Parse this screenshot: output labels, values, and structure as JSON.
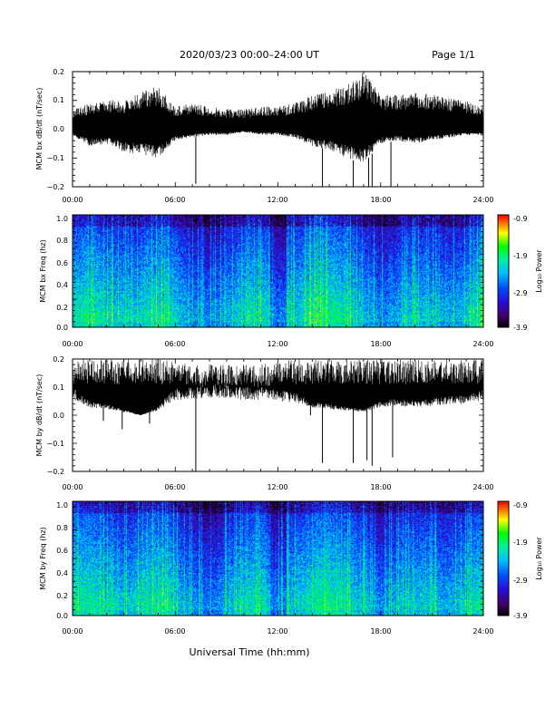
{
  "header": {
    "title": "2020/03/23  00:00–24:00 UT",
    "page": "Page 1/1"
  },
  "footer": {
    "xlabel": "Universal Time (hh:mm)"
  },
  "colors": {
    "trace": "#000000",
    "background": "#ffffff"
  },
  "chart_data": [
    {
      "type": "line",
      "ylabel": "MCM bx dB/dt (nT/sec)",
      "xlim": [
        0,
        24
      ],
      "ylim": [
        -0.2,
        0.2
      ],
      "xticks": [
        "00:00",
        "06:00",
        "12:00",
        "18:00",
        "24:00"
      ],
      "yticks": [
        "0.2",
        "0.1",
        "0.0",
        "−0.1",
        "−0.2"
      ],
      "series": [
        {
          "x": [
            0,
            1,
            2,
            3,
            4,
            5,
            6,
            7,
            8,
            9,
            10,
            11,
            12,
            13,
            14,
            15,
            16,
            17,
            18,
            19,
            20,
            21,
            22,
            23,
            24
          ],
          "y_max": [
            0.07,
            0.09,
            0.1,
            0.1,
            0.13,
            0.15,
            0.08,
            0.09,
            0.08,
            0.07,
            0.07,
            0.08,
            0.08,
            0.09,
            0.12,
            0.14,
            0.15,
            0.2,
            0.12,
            0.12,
            0.13,
            0.12,
            0.11,
            0.1,
            0.08
          ],
          "y_min": [
            -0.02,
            -0.06,
            -0.05,
            -0.08,
            -0.09,
            -0.1,
            -0.04,
            -0.03,
            -0.02,
            -0.02,
            -0.01,
            -0.02,
            -0.02,
            -0.03,
            -0.06,
            -0.07,
            -0.1,
            -0.12,
            -0.05,
            -0.04,
            -0.05,
            -0.04,
            -0.03,
            -0.02,
            -0.02
          ]
        }
      ],
      "spikes": [
        {
          "x": 7.2,
          "y": -0.19
        },
        {
          "x": 14.6,
          "y": -0.2
        },
        {
          "x": 16.4,
          "y": -0.2
        },
        {
          "x": 17.3,
          "y": -0.2
        },
        {
          "x": 17.5,
          "y": -0.2
        },
        {
          "x": 18.6,
          "y": -0.2
        }
      ]
    },
    {
      "type": "heatmap",
      "ylabel": "MCM bx Freq (hz)",
      "colorbar_label": "Log₁₀ Power",
      "xlim": [
        0,
        24
      ],
      "ylim": [
        0,
        1
      ],
      "xticks": [
        "00:00",
        "06:00",
        "12:00",
        "18:00",
        "24:00"
      ],
      "yticks": [
        "1.0",
        "0.8",
        "0.6",
        "0.4",
        "0.2",
        "0.0"
      ],
      "cbar_ticks": [
        "-0.9",
        "-1.9",
        "-2.9",
        "-3.9"
      ],
      "clim": [
        -3.9,
        -0.9
      ]
    },
    {
      "type": "line",
      "ylabel": "MCM by dB/dt (nT/sec)",
      "xlim": [
        0,
        24
      ],
      "ylim": [
        -0.2,
        0.2
      ],
      "xticks": [
        "00:00",
        "06:00",
        "12:00",
        "18:00",
        "24:00"
      ],
      "yticks": [
        "0.2",
        "0.1",
        "0.0",
        "−0.1",
        "−0.2"
      ],
      "series": [
        {
          "x": [
            0,
            1,
            2,
            3,
            4,
            5,
            6,
            7,
            8,
            9,
            10,
            11,
            12,
            13,
            14,
            15,
            16,
            17,
            18,
            19,
            20,
            21,
            22,
            23,
            24
          ],
          "y_max": [
            0.2,
            0.2,
            0.2,
            0.2,
            0.2,
            0.2,
            0.19,
            0.18,
            0.18,
            0.18,
            0.18,
            0.18,
            0.19,
            0.2,
            0.2,
            0.2,
            0.2,
            0.2,
            0.2,
            0.2,
            0.2,
            0.2,
            0.2,
            0.2,
            0.2
          ],
          "y_min": [
            0.1,
            0.05,
            0.04,
            0.02,
            0.0,
            0.03,
            0.1,
            0.1,
            0.11,
            0.11,
            0.1,
            0.1,
            0.09,
            0.08,
            0.05,
            0.04,
            0.03,
            0.02,
            0.05,
            0.06,
            0.05,
            0.06,
            0.07,
            0.07,
            0.09
          ]
        }
      ],
      "spikes": [
        {
          "x": 1.8,
          "y": -0.02
        },
        {
          "x": 2.9,
          "y": -0.05
        },
        {
          "x": 4.5,
          "y": -0.03
        },
        {
          "x": 7.2,
          "y": -0.2
        },
        {
          "x": 13.9,
          "y": 0.0
        },
        {
          "x": 14.6,
          "y": -0.17
        },
        {
          "x": 16.4,
          "y": -0.17
        },
        {
          "x": 17.2,
          "y": -0.16
        },
        {
          "x": 17.5,
          "y": -0.18
        },
        {
          "x": 18.7,
          "y": -0.15
        }
      ]
    },
    {
      "type": "heatmap",
      "ylabel": "MCM by Freq (hz)",
      "colorbar_label": "Log₁₀ Power",
      "xlim": [
        0,
        24
      ],
      "ylim": [
        0,
        1
      ],
      "xticks": [
        "00:00",
        "06:00",
        "12:00",
        "18:00",
        "24:00"
      ],
      "yticks": [
        "1.0",
        "0.8",
        "0.6",
        "0.4",
        "0.2",
        "0.0"
      ],
      "cbar_ticks": [
        "-0.9",
        "-1.9",
        "-2.9",
        "-3.9"
      ],
      "clim": [
        -3.9,
        -0.9
      ]
    }
  ]
}
